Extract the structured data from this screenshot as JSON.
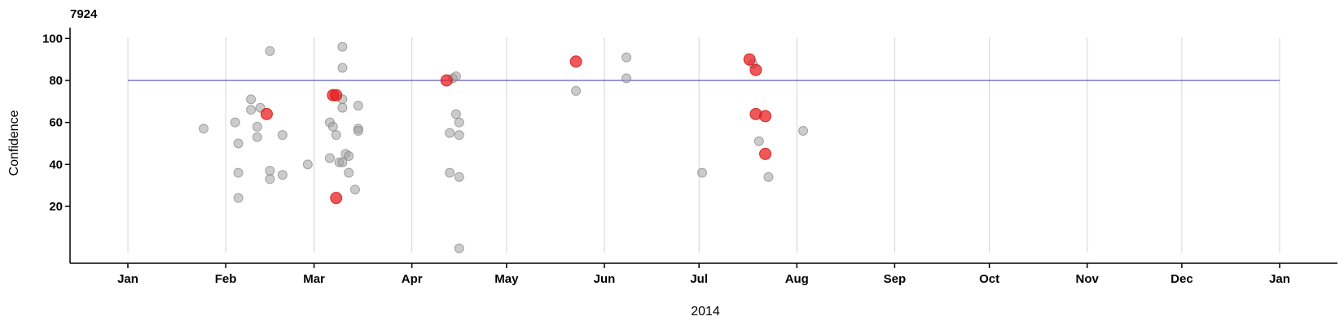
{
  "chart_data": {
    "type": "scatter",
    "title": "7924",
    "xlabel": "2014",
    "ylabel": "Confidence",
    "x_type": "date",
    "xlim": [
      "2014-01-01",
      "2015-01-01"
    ],
    "ylim": [
      -4,
      104
    ],
    "x_ticks": [
      "2014-01-01",
      "2014-02-01",
      "2014-03-01",
      "2014-04-01",
      "2014-05-01",
      "2014-06-01",
      "2014-07-01",
      "2014-08-01",
      "2014-09-01",
      "2014-10-01",
      "2014-11-01",
      "2014-12-01",
      "2015-01-01"
    ],
    "x_tick_labels": [
      "Jan",
      "Feb",
      "Mar",
      "Apr",
      "May",
      "Jun",
      "Jul",
      "Aug",
      "Sep",
      "Oct",
      "Nov",
      "Dec",
      "Jan"
    ],
    "y_ticks": [
      20,
      40,
      60,
      80,
      100
    ],
    "threshold": {
      "y": 80,
      "color": "#3333aa"
    },
    "grid": "vertical",
    "series": [
      {
        "color": "#a0a0a0",
        "points": [
          {
            "x": "2014-01-25",
            "y": 57
          },
          {
            "x": "2014-02-04",
            "y": 60
          },
          {
            "x": "2014-02-05",
            "y": 50
          },
          {
            "x": "2014-02-05",
            "y": 36
          },
          {
            "x": "2014-02-05",
            "y": 24
          },
          {
            "x": "2014-02-09",
            "y": 71
          },
          {
            "x": "2014-02-09",
            "y": 66
          },
          {
            "x": "2014-02-11",
            "y": 58
          },
          {
            "x": "2014-02-11",
            "y": 53
          },
          {
            "x": "2014-02-12",
            "y": 67
          },
          {
            "x": "2014-02-15",
            "y": 94
          },
          {
            "x": "2014-02-15",
            "y": 37
          },
          {
            "x": "2014-02-15",
            "y": 33
          },
          {
            "x": "2014-02-19",
            "y": 54
          },
          {
            "x": "2014-02-19",
            "y": 35
          },
          {
            "x": "2014-02-27",
            "y": 40
          },
          {
            "x": "2014-03-06",
            "y": 60
          },
          {
            "x": "2014-03-06",
            "y": 43
          },
          {
            "x": "2014-03-07",
            "y": 58
          },
          {
            "x": "2014-03-08",
            "y": 54
          },
          {
            "x": "2014-03-09",
            "y": 41
          },
          {
            "x": "2014-03-10",
            "y": 96
          },
          {
            "x": "2014-03-10",
            "y": 86
          },
          {
            "x": "2014-03-10",
            "y": 71
          },
          {
            "x": "2014-03-10",
            "y": 67
          },
          {
            "x": "2014-03-10",
            "y": 41
          },
          {
            "x": "2014-03-11",
            "y": 45
          },
          {
            "x": "2014-03-12",
            "y": 44
          },
          {
            "x": "2014-03-12",
            "y": 36
          },
          {
            "x": "2014-03-14",
            "y": 28
          },
          {
            "x": "2014-03-15",
            "y": 68
          },
          {
            "x": "2014-03-15",
            "y": 57
          },
          {
            "x": "2014-03-15",
            "y": 56
          },
          {
            "x": "2014-04-13",
            "y": 55
          },
          {
            "x": "2014-04-13",
            "y": 36
          },
          {
            "x": "2014-04-14",
            "y": 81
          },
          {
            "x": "2014-04-15",
            "y": 64
          },
          {
            "x": "2014-04-15",
            "y": 82
          },
          {
            "x": "2014-04-16",
            "y": 60
          },
          {
            "x": "2014-04-16",
            "y": 54
          },
          {
            "x": "2014-04-16",
            "y": 34
          },
          {
            "x": "2014-04-16",
            "y": 0
          },
          {
            "x": "2014-05-23",
            "y": 75
          },
          {
            "x": "2014-06-08",
            "y": 91
          },
          {
            "x": "2014-06-08",
            "y": 81
          },
          {
            "x": "2014-07-02",
            "y": 36
          },
          {
            "x": "2014-07-18",
            "y": 88
          },
          {
            "x": "2014-07-20",
            "y": 51
          },
          {
            "x": "2014-07-23",
            "y": 34
          },
          {
            "x": "2014-08-03",
            "y": 56
          }
        ]
      },
      {
        "color": "#e82020",
        "points": [
          {
            "x": "2014-02-14",
            "y": 64
          },
          {
            "x": "2014-03-07",
            "y": 73
          },
          {
            "x": "2014-03-08",
            "y": 73
          },
          {
            "x": "2014-03-08",
            "y": 24
          },
          {
            "x": "2014-04-12",
            "y": 80
          },
          {
            "x": "2014-05-23",
            "y": 89
          },
          {
            "x": "2014-07-17",
            "y": 90
          },
          {
            "x": "2014-07-19",
            "y": 85
          },
          {
            "x": "2014-07-19",
            "y": 64
          },
          {
            "x": "2014-07-22",
            "y": 63
          },
          {
            "x": "2014-07-22",
            "y": 45
          }
        ]
      }
    ]
  }
}
